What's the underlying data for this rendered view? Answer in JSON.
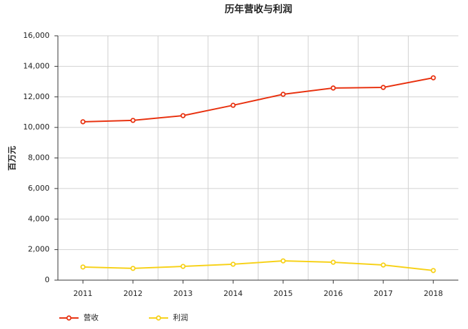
{
  "chart_data": {
    "type": "line",
    "title": "历年营收与利润",
    "y_label": "百万元",
    "categories": [
      "2011",
      "2012",
      "2013",
      "2014",
      "2015",
      "2016",
      "2017",
      "2018"
    ],
    "series": [
      {
        "name": "营收",
        "color": "#e8300e",
        "values": [
          10370,
          10460,
          10770,
          11450,
          12170,
          12580,
          12620,
          13250
        ]
      },
      {
        "name": "利润",
        "color": "#f7d117",
        "values": [
          860,
          770,
          900,
          1040,
          1260,
          1170,
          990,
          630
        ]
      }
    ],
    "ylim": [
      0,
      16000
    ],
    "yticks": [
      0,
      {
        "value": 2000,
        "label": "2,000"
      },
      {
        "value": 4000,
        "label": "4,000"
      },
      {
        "value": 6000,
        "label": "6,000"
      },
      {
        "value": 8000,
        "label": "8,000"
      },
      {
        "value": 10000,
        "label": "10,000"
      },
      {
        "value": 12000,
        "label": "12,000"
      },
      {
        "value": 14000,
        "label": "14,000"
      },
      {
        "value": 16000,
        "label": "16,000"
      }
    ],
    "grid": true,
    "legend": "bottom-left"
  }
}
